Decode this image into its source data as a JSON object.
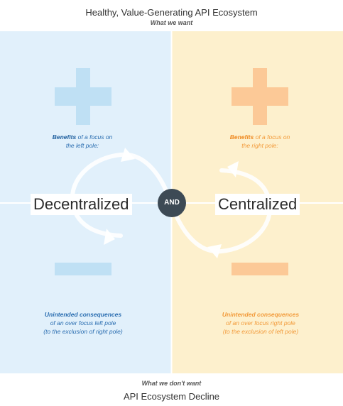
{
  "header": {
    "title": "Healthy, Value-Generating API Ecosystem",
    "subtitle": "What we want"
  },
  "footer": {
    "subtitle": "What we don't want",
    "title": "API Ecosystem Decline"
  },
  "left": {
    "pole": "Decentralized",
    "benefits_bold": "Benefits",
    "benefits_rest_1": " of a focus on",
    "benefits_rest_2": "the left pole:",
    "unintended_bold": "Unintended consequences",
    "unintended_line_2": "of an over focus left pole",
    "unintended_line_3": "(to the exclusion of right pole)",
    "color": "#e1f0fb"
  },
  "right": {
    "pole": "Centralized",
    "benefits_bold": "Benefits",
    "benefits_rest_1": " of a focus on",
    "benefits_rest_2": "the right pole:",
    "unintended_bold": "Unintended consequences",
    "unintended_line_2": "of an over focus right pole",
    "unintended_line_3": "(to the exclusion of left pole)",
    "color": "#fdf0cd"
  },
  "center": {
    "connector": "AND"
  },
  "icons": {
    "plus": "plus-icon",
    "minus": "minus-icon",
    "loop": "infinity-loop-arrows"
  }
}
